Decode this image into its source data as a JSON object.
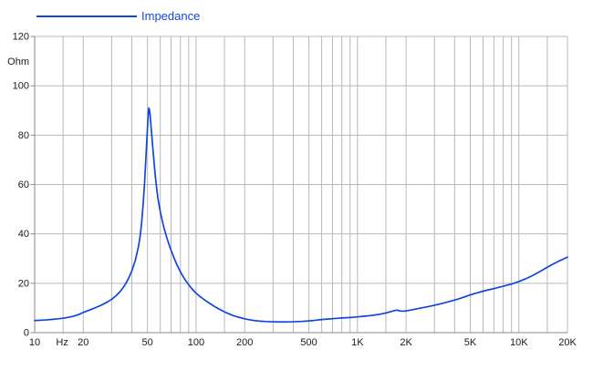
{
  "legend": {
    "label": "Impedance"
  },
  "colors": {
    "line": "#1245e0",
    "grid": "#b8b8b8",
    "spine": "#8a8a8a",
    "text": "#1a1a1a",
    "background": "#ffffff"
  },
  "chart_data": {
    "type": "line",
    "title": "",
    "legend_position": "top-left",
    "grid": true,
    "x_axis": {
      "scale": "log",
      "min": 10,
      "max": 20000,
      "unit_label": "Hz",
      "gridlines": [
        10,
        15,
        20,
        30,
        40,
        50,
        60,
        70,
        80,
        90,
        100,
        150,
        200,
        300,
        400,
        500,
        600,
        700,
        800,
        900,
        1000,
        1500,
        2000,
        3000,
        4000,
        5000,
        6000,
        7000,
        8000,
        9000,
        10000,
        15000,
        20000
      ],
      "tick_labels": [
        {
          "value": 10,
          "label": "10"
        },
        {
          "value": 20,
          "label": "20"
        },
        {
          "value": 50,
          "label": "50"
        },
        {
          "value": 100,
          "label": "100"
        },
        {
          "value": 200,
          "label": "200"
        },
        {
          "value": 500,
          "label": "500"
        },
        {
          "value": 1000,
          "label": "1K"
        },
        {
          "value": 2000,
          "label": "2K"
        },
        {
          "value": 5000,
          "label": "5K"
        },
        {
          "value": 10000,
          "label": "10K"
        },
        {
          "value": 20000,
          "label": "20K"
        }
      ],
      "unit_label_position_hz": 14.8
    },
    "y_axis": {
      "scale": "linear",
      "min": 0,
      "max": 120,
      "unit_label": "Ohm",
      "gridlines": [
        0,
        20,
        40,
        60,
        80,
        100,
        120
      ],
      "tick_labels": [
        "0",
        "20",
        "40",
        "60",
        "80",
        "100",
        "120"
      ]
    },
    "series": [
      {
        "name": "Impedance",
        "points": [
          [
            10,
            4.9
          ],
          [
            11,
            5.05
          ],
          [
            12,
            5.2
          ],
          [
            13,
            5.4
          ],
          [
            14,
            5.6
          ],
          [
            15,
            5.85
          ],
          [
            16,
            6.15
          ],
          [
            17,
            6.5
          ],
          [
            18,
            6.95
          ],
          [
            19,
            7.5
          ],
          [
            20,
            8.2
          ],
          [
            22,
            9.2
          ],
          [
            24,
            10.2
          ],
          [
            26,
            11.2
          ],
          [
            28,
            12.3
          ],
          [
            30,
            13.5
          ],
          [
            32,
            15
          ],
          [
            34,
            16.8
          ],
          [
            36,
            19
          ],
          [
            38,
            21.7
          ],
          [
            40,
            25
          ],
          [
            42,
            29.2
          ],
          [
            44,
            35
          ],
          [
            45,
            39
          ],
          [
            46,
            44.5
          ],
          [
            47,
            52
          ],
          [
            48,
            61
          ],
          [
            49,
            72
          ],
          [
            50,
            83
          ],
          [
            50.7,
            90
          ],
          [
            51,
            91
          ],
          [
            51.5,
            90
          ],
          [
            52,
            87.5
          ],
          [
            53,
            81
          ],
          [
            54,
            74.5
          ],
          [
            55,
            68.5
          ],
          [
            56,
            63
          ],
          [
            57,
            58.5
          ],
          [
            58,
            54.5
          ],
          [
            60,
            49
          ],
          [
            62,
            44.8
          ],
          [
            64,
            41.3
          ],
          [
            66,
            38.3
          ],
          [
            68,
            35.7
          ],
          [
            70,
            33.4
          ],
          [
            73,
            30.3
          ],
          [
            76,
            27.6
          ],
          [
            80,
            24.6
          ],
          [
            85,
            21.7
          ],
          [
            90,
            19.4
          ],
          [
            95,
            17.5
          ],
          [
            100,
            16
          ],
          [
            105,
            14.8
          ],
          [
            110,
            13.8
          ],
          [
            115,
            12.9
          ],
          [
            120,
            12.1
          ],
          [
            130,
            10.6
          ],
          [
            140,
            9.4
          ],
          [
            150,
            8.4
          ],
          [
            160,
            7.6
          ],
          [
            170,
            6.9
          ],
          [
            180,
            6.4
          ],
          [
            190,
            6.0
          ],
          [
            200,
            5.6
          ],
          [
            215,
            5.2
          ],
          [
            230,
            4.9
          ],
          [
            250,
            4.65
          ],
          [
            270,
            4.5
          ],
          [
            300,
            4.4
          ],
          [
            330,
            4.35
          ],
          [
            360,
            4.35
          ],
          [
            400,
            4.4
          ],
          [
            450,
            4.55
          ],
          [
            500,
            4.75
          ],
          [
            550,
            5.0
          ],
          [
            600,
            5.3
          ],
          [
            650,
            5.5
          ],
          [
            700,
            5.65
          ],
          [
            750,
            5.8
          ],
          [
            800,
            5.95
          ],
          [
            850,
            6.05
          ],
          [
            900,
            6.15
          ],
          [
            950,
            6.25
          ],
          [
            1000,
            6.4
          ],
          [
            1100,
            6.65
          ],
          [
            1200,
            6.9
          ],
          [
            1300,
            7.2
          ],
          [
            1400,
            7.55
          ],
          [
            1500,
            7.95
          ],
          [
            1600,
            8.45
          ],
          [
            1700,
            8.95
          ],
          [
            1750,
            9.1
          ],
          [
            1800,
            8.95
          ],
          [
            1850,
            8.75
          ],
          [
            1900,
            8.7
          ],
          [
            1950,
            8.72
          ],
          [
            2000,
            8.8
          ],
          [
            2200,
            9.3
          ],
          [
            2400,
            9.8
          ],
          [
            2700,
            10.45
          ],
          [
            3000,
            11.1
          ],
          [
            3400,
            11.95
          ],
          [
            3800,
            12.8
          ],
          [
            4200,
            13.6
          ],
          [
            4600,
            14.45
          ],
          [
            5000,
            15.3
          ],
          [
            5500,
            16.1
          ],
          [
            6000,
            16.8
          ],
          [
            6500,
            17.35
          ],
          [
            7000,
            17.85
          ],
          [
            7500,
            18.35
          ],
          [
            8000,
            18.8
          ],
          [
            8500,
            19.25
          ],
          [
            9000,
            19.7
          ],
          [
            9500,
            20.2
          ],
          [
            10000,
            20.7
          ],
          [
            11000,
            21.8
          ],
          [
            12000,
            22.95
          ],
          [
            13000,
            24.15
          ],
          [
            14000,
            25.35
          ],
          [
            15000,
            26.5
          ],
          [
            16000,
            27.5
          ],
          [
            17000,
            28.4
          ],
          [
            18000,
            29.2
          ],
          [
            19000,
            29.9
          ],
          [
            20000,
            30.6
          ]
        ]
      }
    ]
  }
}
